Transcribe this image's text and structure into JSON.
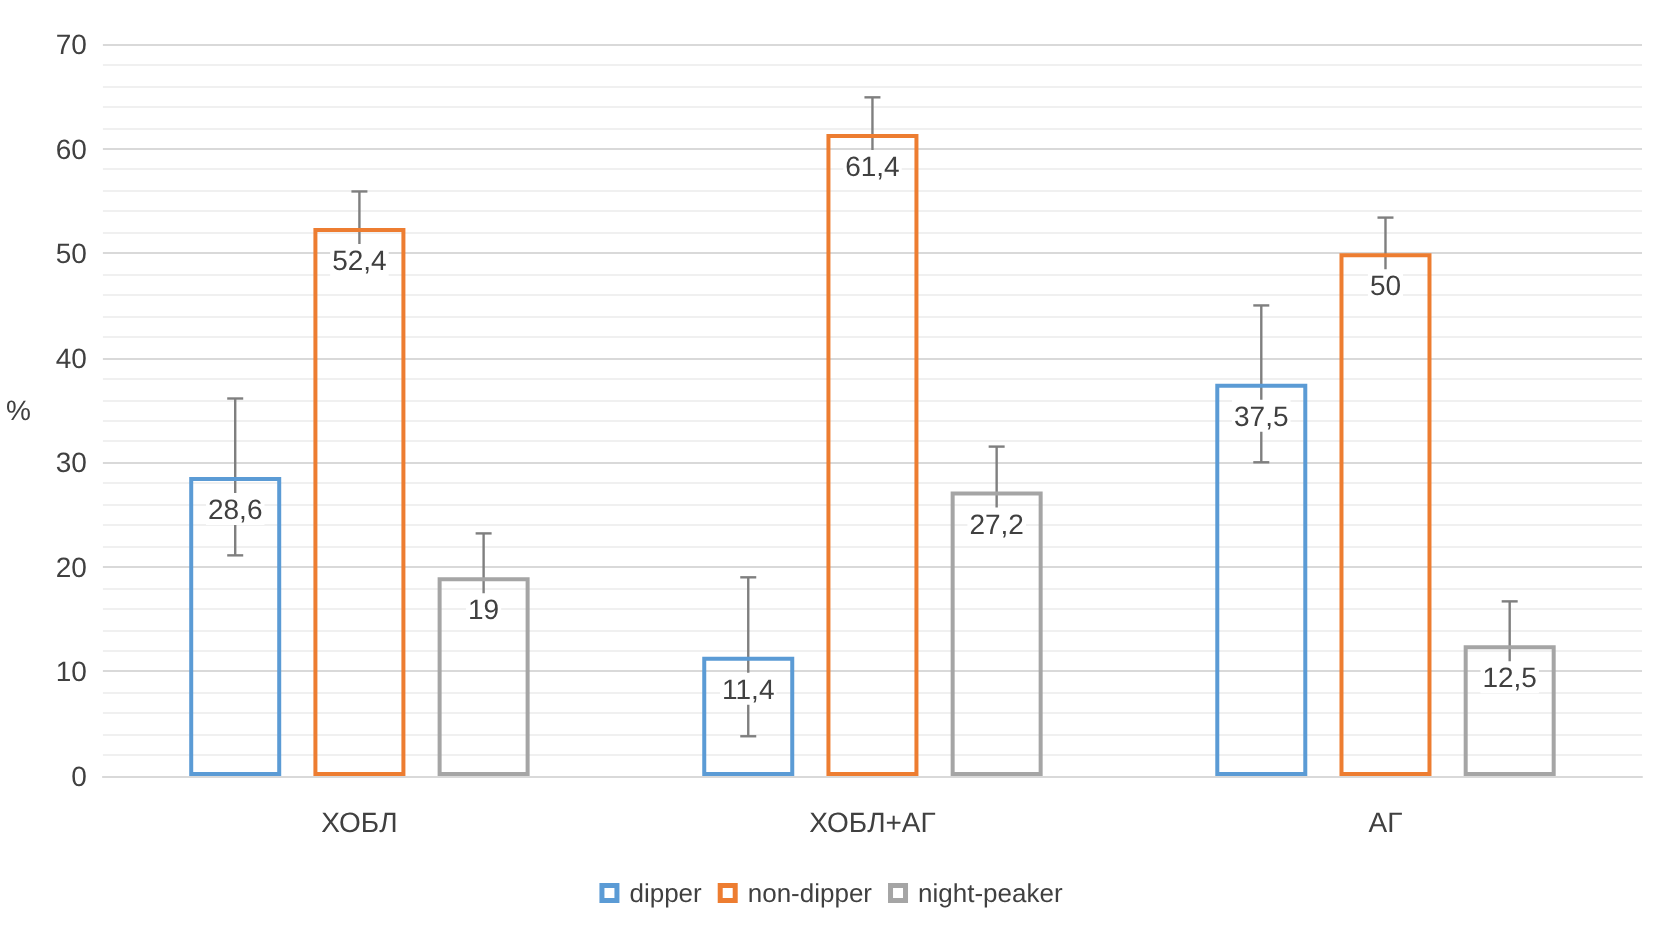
{
  "chart_data": {
    "type": "bar",
    "ylabel": "%",
    "categories": [
      "ХОБЛ",
      "ХОБЛ+АГ",
      "АГ"
    ],
    "series": [
      {
        "name": "dipper",
        "color": "#5b9bd5",
        "values": [
          28.6,
          11.4,
          37.5
        ],
        "value_labels": [
          "28,6",
          "11,4",
          "37,5"
        ],
        "errors": [
          7.5,
          7.6,
          7.5
        ]
      },
      {
        "name": "non-dipper",
        "color": "#ed7d31",
        "values": [
          52.4,
          61.4,
          50
        ],
        "value_labels": [
          "52,4",
          "61,4",
          "50"
        ],
        "errors": [
          3.5,
          3.5,
          3.4
        ]
      },
      {
        "name": "night-peaker",
        "color": "#a5a5a5",
        "values": [
          19,
          27.2,
          12.5
        ],
        "value_labels": [
          "19",
          "27,2",
          "12,5"
        ],
        "errors": [
          4.2,
          4.3,
          4.2
        ]
      }
    ],
    "ylim": [
      0,
      70
    ],
    "yticks": [
      0,
      10,
      20,
      30,
      40,
      50,
      60,
      70
    ],
    "grid": "y",
    "legend": "bottom"
  }
}
